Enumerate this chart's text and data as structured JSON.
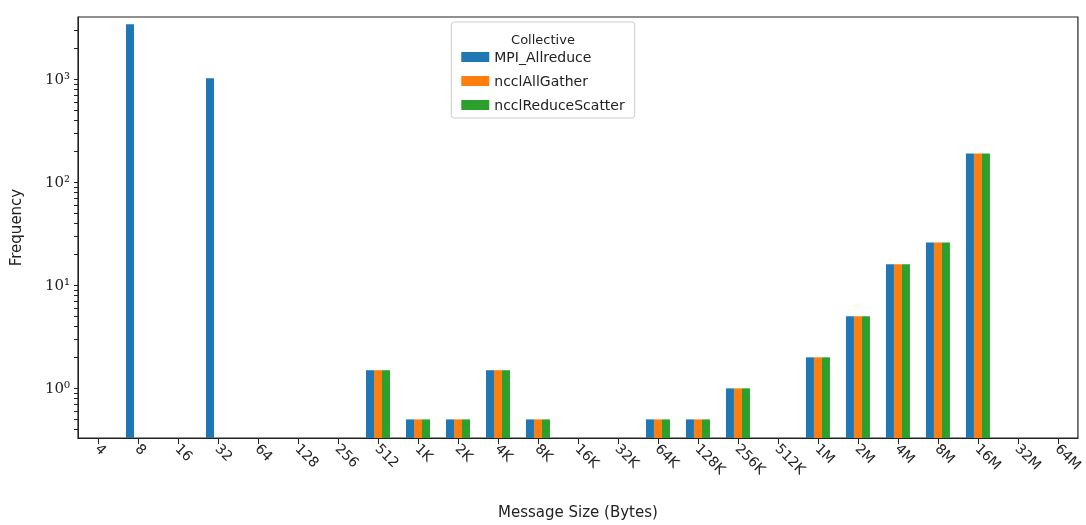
{
  "chart_data": {
    "type": "bar",
    "xlabel": "Message Size (Bytes)",
    "ylabel": "Frequency",
    "legend_title": "Collective",
    "legend": "top",
    "log": "y",
    "categories": [
      "4",
      "8",
      "16",
      "32",
      "64",
      "128",
      "256",
      "512",
      "1K",
      "2K",
      "4K",
      "8K",
      "16K",
      "32K",
      "64K",
      "128K",
      "256K",
      "512K",
      "1M",
      "2M",
      "4M",
      "8M",
      "16M",
      "32M",
      "64M"
    ],
    "ylim": [
      0.33,
      4000
    ],
    "yticks": [
      {
        "value": 0.4,
        "label": null
      },
      {
        "value": 0.5,
        "label": null
      },
      {
        "value": 0.6,
        "label": null
      },
      {
        "value": 0.7,
        "label": null
      },
      {
        "value": 0.8,
        "label": null
      },
      {
        "value": 0.9,
        "label": null
      },
      {
        "value": 1,
        "label": "10⁰"
      },
      {
        "value": 2,
        "label": null
      },
      {
        "value": 3,
        "label": null
      },
      {
        "value": 4,
        "label": null
      },
      {
        "value": 5,
        "label": null
      },
      {
        "value": 6,
        "label": null
      },
      {
        "value": 7,
        "label": null
      },
      {
        "value": 8,
        "label": null
      },
      {
        "value": 9,
        "label": null
      },
      {
        "value": 10,
        "label": "10¹"
      },
      {
        "value": 20,
        "label": null
      },
      {
        "value": 30,
        "label": null
      },
      {
        "value": 40,
        "label": null
      },
      {
        "value": 50,
        "label": null
      },
      {
        "value": 60,
        "label": null
      },
      {
        "value": 70,
        "label": null
      },
      {
        "value": 80,
        "label": null
      },
      {
        "value": 90,
        "label": null
      },
      {
        "value": 100,
        "label": "10²"
      },
      {
        "value": 200,
        "label": null
      },
      {
        "value": 300,
        "label": null
      },
      {
        "value": 400,
        "label": null
      },
      {
        "value": 500,
        "label": null
      },
      {
        "value": 600,
        "label": null
      },
      {
        "value": 700,
        "label": null
      },
      {
        "value": 800,
        "label": null
      },
      {
        "value": 900,
        "label": null
      },
      {
        "value": 1000,
        "label": "10³"
      },
      {
        "value": 2000,
        "label": null
      },
      {
        "value": 3000,
        "label": null
      }
    ],
    "series": [
      {
        "name": "MPI_Allreduce",
        "color": "#1f77b4",
        "values": [
          null,
          3400,
          null,
          1020,
          null,
          null,
          null,
          1.5,
          0.5,
          0.5,
          1.5,
          0.5,
          null,
          null,
          0.5,
          0.5,
          1,
          null,
          2,
          5,
          16,
          26,
          190,
          null,
          null
        ]
      },
      {
        "name": "ncclAllGather",
        "color": "#ff7f0e",
        "values": [
          null,
          null,
          null,
          null,
          null,
          null,
          null,
          1.5,
          0.5,
          0.5,
          1.5,
          0.5,
          null,
          null,
          0.5,
          0.5,
          1,
          null,
          2,
          5,
          16,
          26,
          190,
          null,
          null
        ]
      },
      {
        "name": "ncclReduceScatter",
        "color": "#2ca02c",
        "values": [
          null,
          null,
          null,
          null,
          null,
          null,
          null,
          1.5,
          0.5,
          0.5,
          1.5,
          0.5,
          null,
          null,
          0.5,
          0.5,
          1,
          null,
          2,
          5,
          16,
          26,
          190,
          null,
          null
        ]
      }
    ]
  }
}
